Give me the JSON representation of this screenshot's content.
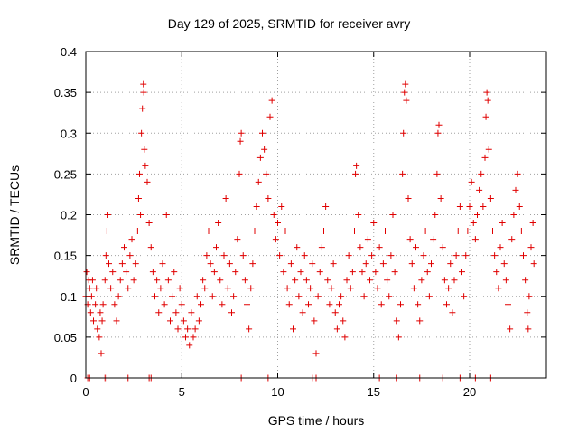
{
  "chart_data": {
    "type": "scatter",
    "title": "Day 129 of 2025, SRMTID for receiver avry",
    "xlabel": "GPS time / hours",
    "ylabel": "SRMTID / TECUs",
    "xlim": [
      0,
      24
    ],
    "ylim": [
      0,
      0.4
    ],
    "xticks": [
      0,
      5,
      10,
      15,
      20
    ],
    "yticks": [
      0,
      0.05,
      0.1,
      0.15,
      0.2,
      0.25,
      0.3,
      0.35,
      0.4
    ],
    "ytick_labels": [
      "0",
      "0.05",
      "0.1",
      "0.15",
      "0.2",
      "0.25",
      "0.3",
      "0.35",
      "0.4"
    ],
    "grid": true,
    "marker": "+",
    "color": "#e00000",
    "series": [
      {
        "name": "SRMTID",
        "points": [
          [
            0.0,
            0.1
          ],
          [
            0.05,
            0.13
          ],
          [
            0.1,
            0.09
          ],
          [
            0.15,
            0.12
          ],
          [
            0.2,
            0.11
          ],
          [
            0.25,
            0.08
          ],
          [
            0.3,
            0.1
          ],
          [
            0.35,
            0.12
          ],
          [
            0.4,
            0.07
          ],
          [
            0.5,
            0.09
          ],
          [
            0.55,
            0.11
          ],
          [
            0.6,
            0.06
          ],
          [
            0.7,
            0.05
          ],
          [
            0.75,
            0.08
          ],
          [
            0.8,
            0.03
          ],
          [
            0.85,
            0.07
          ],
          [
            0.9,
            0.09
          ],
          [
            1.0,
            0.12
          ],
          [
            1.05,
            0.15
          ],
          [
            1.1,
            0.18
          ],
          [
            1.15,
            0.2
          ],
          [
            1.2,
            0.14
          ],
          [
            1.3,
            0.11
          ],
          [
            1.4,
            0.13
          ],
          [
            1.5,
            0.09
          ],
          [
            1.6,
            0.07
          ],
          [
            1.7,
            0.1
          ],
          [
            1.8,
            0.12
          ],
          [
            1.9,
            0.14
          ],
          [
            2.0,
            0.16
          ],
          [
            2.1,
            0.13
          ],
          [
            2.2,
            0.11
          ],
          [
            2.3,
            0.15
          ],
          [
            2.4,
            0.17
          ],
          [
            2.5,
            0.12
          ],
          [
            2.6,
            0.14
          ],
          [
            2.7,
            0.18
          ],
          [
            2.75,
            0.22
          ],
          [
            2.8,
            0.25
          ],
          [
            2.85,
            0.2
          ],
          [
            2.9,
            0.3
          ],
          [
            2.95,
            0.33
          ],
          [
            3.0,
            0.36
          ],
          [
            3.02,
            0.35
          ],
          [
            3.05,
            0.28
          ],
          [
            3.1,
            0.26
          ],
          [
            3.2,
            0.24
          ],
          [
            3.3,
            0.19
          ],
          [
            3.4,
            0.16
          ],
          [
            3.5,
            0.13
          ],
          [
            3.6,
            0.1
          ],
          [
            3.7,
            0.12
          ],
          [
            3.8,
            0.08
          ],
          [
            3.9,
            0.11
          ],
          [
            4.0,
            0.14
          ],
          [
            4.1,
            0.09
          ],
          [
            4.2,
            0.2
          ],
          [
            4.3,
            0.12
          ],
          [
            4.4,
            0.07
          ],
          [
            4.5,
            0.1
          ],
          [
            4.6,
            0.13
          ],
          [
            4.7,
            0.08
          ],
          [
            4.8,
            0.06
          ],
          [
            4.9,
            0.11
          ],
          [
            5.0,
            0.09
          ],
          [
            5.1,
            0.07
          ],
          [
            5.2,
            0.05
          ],
          [
            5.3,
            0.06
          ],
          [
            5.4,
            0.04
          ],
          [
            5.5,
            0.08
          ],
          [
            5.6,
            0.05
          ],
          [
            5.7,
            0.06
          ],
          [
            5.8,
            0.1
          ],
          [
            5.9,
            0.07
          ],
          [
            6.0,
            0.09
          ],
          [
            6.1,
            0.12
          ],
          [
            6.2,
            0.11
          ],
          [
            6.3,
            0.15
          ],
          [
            6.4,
            0.18
          ],
          [
            6.5,
            0.14
          ],
          [
            6.6,
            0.1
          ],
          [
            6.7,
            0.13
          ],
          [
            6.8,
            0.16
          ],
          [
            6.9,
            0.19
          ],
          [
            7.0,
            0.12
          ],
          [
            7.1,
            0.09
          ],
          [
            7.2,
            0.15
          ],
          [
            7.3,
            0.22
          ],
          [
            7.4,
            0.11
          ],
          [
            7.5,
            0.14
          ],
          [
            7.6,
            0.08
          ],
          [
            7.7,
            0.1
          ],
          [
            7.8,
            0.13
          ],
          [
            7.9,
            0.17
          ],
          [
            8.0,
            0.25
          ],
          [
            8.05,
            0.29
          ],
          [
            8.1,
            0.3
          ],
          [
            8.2,
            0.15
          ],
          [
            8.3,
            0.12
          ],
          [
            8.4,
            0.09
          ],
          [
            8.5,
            0.06
          ],
          [
            8.6,
            0.11
          ],
          [
            8.7,
            0.14
          ],
          [
            8.8,
            0.18
          ],
          [
            8.9,
            0.21
          ],
          [
            9.0,
            0.24
          ],
          [
            9.1,
            0.27
          ],
          [
            9.2,
            0.3
          ],
          [
            9.3,
            0.28
          ],
          [
            9.4,
            0.25
          ],
          [
            9.5,
            0.22
          ],
          [
            9.6,
            0.32
          ],
          [
            9.7,
            0.34
          ],
          [
            9.8,
            0.2
          ],
          [
            9.9,
            0.17
          ],
          [
            10.0,
            0.19
          ],
          [
            10.1,
            0.15
          ],
          [
            10.2,
            0.21
          ],
          [
            10.3,
            0.13
          ],
          [
            10.4,
            0.18
          ],
          [
            10.5,
            0.11
          ],
          [
            10.6,
            0.09
          ],
          [
            10.7,
            0.14
          ],
          [
            10.8,
            0.06
          ],
          [
            10.9,
            0.12
          ],
          [
            11.0,
            0.16
          ],
          [
            11.1,
            0.1
          ],
          [
            11.2,
            0.13
          ],
          [
            11.3,
            0.08
          ],
          [
            11.4,
            0.15
          ],
          [
            11.5,
            0.12
          ],
          [
            11.6,
            0.09
          ],
          [
            11.7,
            0.11
          ],
          [
            11.8,
            0.14
          ],
          [
            11.9,
            0.07
          ],
          [
            12.0,
            0.03
          ],
          [
            12.1,
            0.1
          ],
          [
            12.2,
            0.13
          ],
          [
            12.3,
            0.16
          ],
          [
            12.4,
            0.18
          ],
          [
            12.5,
            0.21
          ],
          [
            12.6,
            0.12
          ],
          [
            12.7,
            0.09
          ],
          [
            12.8,
            0.11
          ],
          [
            12.9,
            0.14
          ],
          [
            13.0,
            0.08
          ],
          [
            13.1,
            0.06
          ],
          [
            13.2,
            0.09
          ],
          [
            13.3,
            0.1
          ],
          [
            13.4,
            0.07
          ],
          [
            13.5,
            0.05
          ],
          [
            13.6,
            0.12
          ],
          [
            13.7,
            0.15
          ],
          [
            13.8,
            0.11
          ],
          [
            13.9,
            0.13
          ],
          [
            14.0,
            0.18
          ],
          [
            14.05,
            0.25
          ],
          [
            14.1,
            0.26
          ],
          [
            14.2,
            0.2
          ],
          [
            14.3,
            0.16
          ],
          [
            14.4,
            0.13
          ],
          [
            14.5,
            0.1
          ],
          [
            14.6,
            0.14
          ],
          [
            14.7,
            0.17
          ],
          [
            14.8,
            0.12
          ],
          [
            14.9,
            0.15
          ],
          [
            15.0,
            0.19
          ],
          [
            15.1,
            0.13
          ],
          [
            15.2,
            0.11
          ],
          [
            15.3,
            0.16
          ],
          [
            15.4,
            0.09
          ],
          [
            15.5,
            0.14
          ],
          [
            15.6,
            0.18
          ],
          [
            15.7,
            0.12
          ],
          [
            15.8,
            0.1
          ],
          [
            15.9,
            0.15
          ],
          [
            16.0,
            0.2
          ],
          [
            16.1,
            0.13
          ],
          [
            16.2,
            0.07
          ],
          [
            16.3,
            0.05
          ],
          [
            16.4,
            0.09
          ],
          [
            16.5,
            0.25
          ],
          [
            16.55,
            0.3
          ],
          [
            16.6,
            0.35
          ],
          [
            16.65,
            0.36
          ],
          [
            16.7,
            0.34
          ],
          [
            16.8,
            0.22
          ],
          [
            16.9,
            0.17
          ],
          [
            17.0,
            0.14
          ],
          [
            17.1,
            0.11
          ],
          [
            17.2,
            0.16
          ],
          [
            17.3,
            0.09
          ],
          [
            17.4,
            0.07
          ],
          [
            17.5,
            0.12
          ],
          [
            17.6,
            0.15
          ],
          [
            17.7,
            0.18
          ],
          [
            17.8,
            0.13
          ],
          [
            17.9,
            0.1
          ],
          [
            18.0,
            0.14
          ],
          [
            18.1,
            0.17
          ],
          [
            18.2,
            0.2
          ],
          [
            18.3,
            0.25
          ],
          [
            18.35,
            0.3
          ],
          [
            18.4,
            0.31
          ],
          [
            18.5,
            0.22
          ],
          [
            18.6,
            0.16
          ],
          [
            18.7,
            0.12
          ],
          [
            18.8,
            0.09
          ],
          [
            18.9,
            0.11
          ],
          [
            19.0,
            0.14
          ],
          [
            19.1,
            0.08
          ],
          [
            19.2,
            0.12
          ],
          [
            19.3,
            0.15
          ],
          [
            19.4,
            0.18
          ],
          [
            19.5,
            0.21
          ],
          [
            19.6,
            0.13
          ],
          [
            19.7,
            0.1
          ],
          [
            19.8,
            0.15
          ],
          [
            19.9,
            0.18
          ],
          [
            20.0,
            0.21
          ],
          [
            20.1,
            0.24
          ],
          [
            20.2,
            0.19
          ],
          [
            20.3,
            0.17
          ],
          [
            20.4,
            0.2
          ],
          [
            20.5,
            0.23
          ],
          [
            20.6,
            0.25
          ],
          [
            20.7,
            0.21
          ],
          [
            20.8,
            0.27
          ],
          [
            20.85,
            0.32
          ],
          [
            20.9,
            0.35
          ],
          [
            20.95,
            0.34
          ],
          [
            21.0,
            0.28
          ],
          [
            21.1,
            0.22
          ],
          [
            21.2,
            0.18
          ],
          [
            21.3,
            0.15
          ],
          [
            21.4,
            0.13
          ],
          [
            21.5,
            0.11
          ],
          [
            21.6,
            0.16
          ],
          [
            21.7,
            0.19
          ],
          [
            21.8,
            0.14
          ],
          [
            21.9,
            0.12
          ],
          [
            22.0,
            0.09
          ],
          [
            22.1,
            0.06
          ],
          [
            22.2,
            0.17
          ],
          [
            22.3,
            0.2
          ],
          [
            22.4,
            0.23
          ],
          [
            22.5,
            0.25
          ],
          [
            22.6,
            0.21
          ],
          [
            22.7,
            0.18
          ],
          [
            22.8,
            0.15
          ],
          [
            22.9,
            0.12
          ],
          [
            23.0,
            0.08
          ],
          [
            23.05,
            0.06
          ],
          [
            23.1,
            0.1
          ],
          [
            23.2,
            0.16
          ],
          [
            23.3,
            0.19
          ],
          [
            23.35,
            0.14
          ],
          [
            0.1,
            0
          ],
          [
            0.2,
            0
          ],
          [
            1.0,
            0
          ],
          [
            1.1,
            0
          ],
          [
            2.2,
            0
          ],
          [
            3.3,
            0
          ],
          [
            3.4,
            0
          ],
          [
            8.1,
            0
          ],
          [
            8.4,
            0
          ],
          [
            9.5,
            0
          ],
          [
            11.8,
            0
          ],
          [
            12.0,
            0
          ],
          [
            15.3,
            0
          ],
          [
            16.2,
            0
          ],
          [
            17.4,
            0
          ],
          [
            18.6,
            0
          ],
          [
            19.5,
            0
          ],
          [
            20.3,
            0
          ],
          [
            21.1,
            0
          ]
        ]
      }
    ]
  }
}
